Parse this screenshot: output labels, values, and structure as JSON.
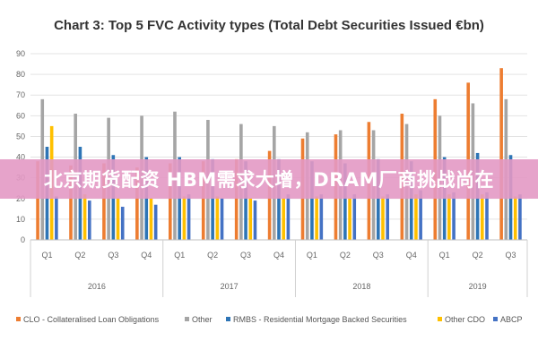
{
  "chart_data": {
    "type": "bar",
    "title": "Chart 3: Top 5 FVC Activity types (Total Debt Securities Issued €bn)",
    "xlabel": "",
    "ylabel": "",
    "ylim": [
      0,
      90
    ],
    "yticks": [
      0,
      10,
      20,
      30,
      40,
      50,
      60,
      70,
      80,
      90
    ],
    "grid": true,
    "legend_position": "bottom",
    "categories": [
      "Q1",
      "Q2",
      "Q3",
      "Q4",
      "Q1",
      "Q2",
      "Q3",
      "Q4",
      "Q1",
      "Q2",
      "Q3",
      "Q4",
      "Q1",
      "Q2",
      "Q3"
    ],
    "year_groups": [
      {
        "label": "2016",
        "count": 4
      },
      {
        "label": "2017",
        "count": 4
      },
      {
        "label": "2018",
        "count": 4
      },
      {
        "label": "2019",
        "count": 3
      }
    ],
    "series": [
      {
        "name": "CLO - Collateralised Loan Obligations",
        "color": "#ED7D31",
        "values": [
          38,
          36,
          37,
          35,
          37,
          38,
          39,
          43,
          49,
          51,
          57,
          61,
          68,
          76,
          83
        ]
      },
      {
        "name": "Other",
        "color": "#A5A5A5",
        "values": [
          68,
          61,
          59,
          60,
          62,
          58,
          56,
          55,
          52,
          53,
          53,
          56,
          60,
          66,
          68
        ]
      },
      {
        "name": "RMBS - Residential Mortgage Backed Securities",
        "color": "#2E75B6",
        "values": [
          45,
          45,
          41,
          40,
          40,
          39,
          38,
          39,
          38,
          37,
          39,
          38,
          40,
          42,
          41
        ]
      },
      {
        "name": "Other CDO",
        "color": "#FFC000",
        "values": [
          55,
          22,
          20,
          20,
          21,
          21,
          20,
          20,
          21,
          20,
          21,
          22,
          22,
          22,
          21
        ]
      },
      {
        "name": "ABCP",
        "color": "#4472C4",
        "values": [
          21,
          19,
          16,
          17,
          22,
          20,
          19,
          22,
          22,
          22,
          22,
          24,
          23,
          23,
          22
        ]
      }
    ]
  },
  "banner": {
    "text": "北京期货配资 HBM需求大增，DRAM厂商挑战尚在"
  }
}
